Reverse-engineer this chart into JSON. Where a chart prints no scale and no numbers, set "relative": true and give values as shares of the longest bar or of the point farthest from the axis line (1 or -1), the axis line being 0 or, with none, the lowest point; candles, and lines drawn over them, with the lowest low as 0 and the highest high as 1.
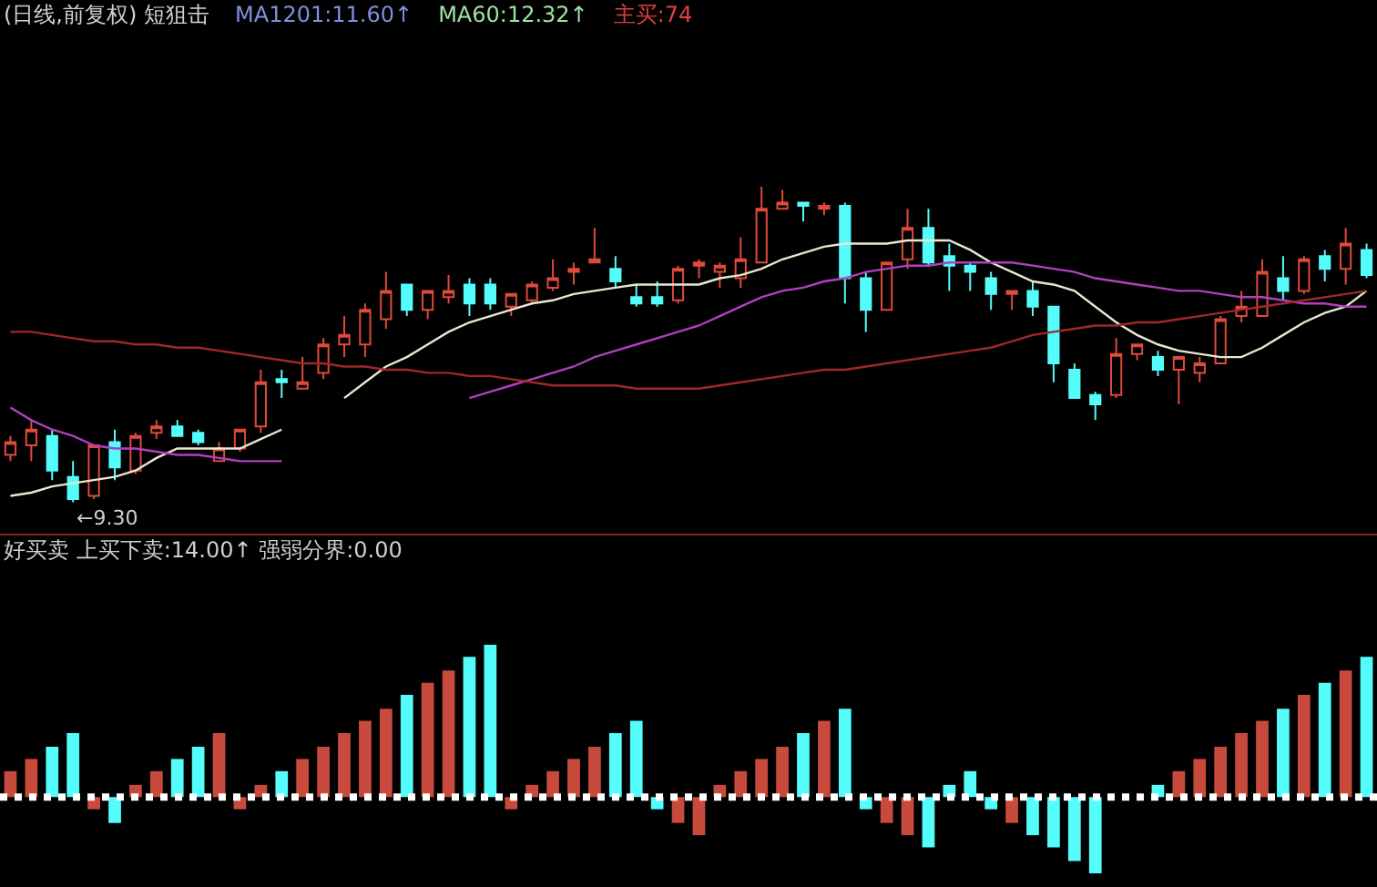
{
  "chart_data": [
    {
      "type": "candlestick",
      "title": "(日线,前复权) 短狙击",
      "relative": true,
      "categories": [
        null,
        null,
        null,
        null,
        null,
        null,
        null,
        null,
        null,
        null,
        null,
        null,
        null,
        null,
        null,
        null,
        null,
        null,
        null,
        null,
        null,
        null,
        null,
        null,
        null,
        null,
        null,
        null,
        null,
        null,
        null,
        null,
        null,
        null,
        null,
        null,
        null,
        null,
        null,
        null,
        null,
        null,
        null,
        null,
        null,
        null,
        null,
        null,
        null,
        null,
        null,
        null,
        null,
        null,
        null,
        null,
        null,
        null,
        null,
        null,
        null,
        null,
        null,
        null,
        null,
        null
      ],
      "ohlc": [
        [
          0.15,
          0.21,
          0.13,
          0.19
        ],
        [
          0.18,
          0.26,
          0.13,
          0.23
        ],
        [
          0.21,
          0.23,
          0.07,
          0.1
        ],
        [
          0.08,
          0.13,
          0,
          0.01
        ],
        [
          0.02,
          0.18,
          0.01,
          0.18
        ],
        [
          0.19,
          0.23,
          0.07,
          0.11
        ],
        [
          0.1,
          0.22,
          0.09,
          0.21
        ],
        [
          0.22,
          0.26,
          0.2,
          0.24
        ],
        [
          0.24,
          0.26,
          0.21,
          0.21
        ],
        [
          0.22,
          0.23,
          0.18,
          0.19
        ],
        [
          0.13,
          0.19,
          0.13,
          0.17
        ],
        [
          0.17,
          0.23,
          0.16,
          0.23
        ],
        [
          0.24,
          0.42,
          0.22,
          0.38
        ],
        [
          0.39,
          0.42,
          0.33,
          0.38
        ],
        [
          0.36,
          0.46,
          0.36,
          0.38
        ],
        [
          0.41,
          0.52,
          0.39,
          0.5
        ],
        [
          0.5,
          0.59,
          0.46,
          0.53
        ],
        [
          0.5,
          0.63,
          0.46,
          0.61
        ],
        [
          0.58,
          0.73,
          0.55,
          0.67
        ],
        [
          0.69,
          0.69,
          0.59,
          0.61
        ],
        [
          0.61,
          0.67,
          0.58,
          0.67
        ],
        [
          0.65,
          0.72,
          0.63,
          0.67
        ],
        [
          0.69,
          0.71,
          0.59,
          0.63
        ],
        [
          0.69,
          0.71,
          0.61,
          0.63
        ],
        [
          0.62,
          0.66,
          0.59,
          0.66
        ],
        [
          0.64,
          0.7,
          0.63,
          0.69
        ],
        [
          0.68,
          0.77,
          0.67,
          0.71
        ],
        [
          0.73,
          0.76,
          0.69,
          0.74
        ],
        [
          0.76,
          0.87,
          0.76,
          0.77
        ],
        [
          0.74,
          0.78,
          0.68,
          0.7
        ],
        [
          0.65,
          0.69,
          0.62,
          0.63
        ],
        [
          0.65,
          0.7,
          0.62,
          0.63
        ],
        [
          0.64,
          0.75,
          0.63,
          0.74
        ],
        [
          0.75,
          0.77,
          0.71,
          0.76
        ],
        [
          0.73,
          0.76,
          0.68,
          0.75
        ],
        [
          0.71,
          0.84,
          0.68,
          0.77
        ],
        [
          0.76,
          1,
          0.76,
          0.93
        ],
        [
          0.93,
          0.99,
          0.93,
          0.95
        ],
        [
          0.95,
          0.95,
          0.89,
          0.94
        ],
        [
          0.93,
          0.95,
          0.91,
          0.94
        ],
        [
          0.94,
          0.95,
          0.63,
          0.71
        ],
        [
          0.71,
          0.73,
          0.54,
          0.61
        ],
        [
          0.61,
          0.76,
          0.61,
          0.76
        ],
        [
          0.77,
          0.93,
          0.74,
          0.87
        ],
        [
          0.87,
          0.93,
          0.75,
          0.76
        ],
        [
          0.78,
          0.82,
          0.67,
          0.75
        ],
        [
          0.75,
          0.76,
          0.67,
          0.73
        ],
        [
          0.71,
          0.73,
          0.61,
          0.66
        ],
        [
          0.66,
          0.67,
          0.61,
          0.67
        ],
        [
          0.67,
          0.7,
          0.59,
          0.62
        ],
        [
          0.62,
          0.62,
          0.38,
          0.44
        ],
        [
          0.42,
          0.44,
          0.33,
          0.33
        ],
        [
          0.34,
          0.35,
          0.26,
          0.31
        ],
        [
          0.34,
          0.52,
          0.33,
          0.47
        ],
        [
          0.47,
          0.5,
          0.45,
          0.5
        ],
        [
          0.46,
          0.48,
          0.4,
          0.42
        ],
        [
          0.42,
          0.46,
          0.31,
          0.46
        ],
        [
          0.41,
          0.46,
          0.38,
          0.44
        ],
        [
          0.44,
          0.59,
          0.44,
          0.58
        ],
        [
          0.59,
          0.67,
          0.57,
          0.62
        ],
        [
          0.59,
          0.77,
          0.59,
          0.73
        ],
        [
          0.71,
          0.78,
          0.64,
          0.67
        ],
        [
          0.67,
          0.78,
          0.66,
          0.77
        ],
        [
          0.78,
          0.8,
          0.7,
          0.74
        ],
        [
          0.74,
          0.87,
          0.69,
          0.82
        ],
        [
          0.8,
          0.82,
          0.71,
          0.72
        ]
      ],
      "colors": [
        "#e04a3a",
        "#e04a3a",
        "#54fcfc",
        "#54fcfc",
        "#e04a3a",
        "#54fcfc",
        "#e04a3a",
        "#e04a3a",
        "#54fcfc",
        "#54fcfc",
        "#e04a3a",
        "#e04a3a",
        "#e04a3a",
        "#54fcfc",
        "#e04a3a",
        "#e04a3a",
        "#e04a3a",
        "#e04a3a",
        "#e04a3a",
        "#54fcfc",
        "#e04a3a",
        "#e04a3a",
        "#54fcfc",
        "#54fcfc",
        "#e04a3a",
        "#e04a3a",
        "#e04a3a",
        "#e04a3a",
        "#e04a3a",
        "#54fcfc",
        "#54fcfc",
        "#54fcfc",
        "#e04a3a",
        "#e04a3a",
        "#e04a3a",
        "#e04a3a",
        "#e04a3a",
        "#e04a3a",
        "#54fcfc",
        "#e04a3a",
        "#54fcfc",
        "#54fcfc",
        "#e04a3a",
        "#e04a3a",
        "#54fcfc",
        "#54fcfc",
        "#54fcfc",
        "#54fcfc",
        "#e04a3a",
        "#54fcfc",
        "#54fcfc",
        "#54fcfc",
        "#54fcfc",
        "#e04a3a",
        "#e04a3a",
        "#54fcfc",
        "#e04a3a",
        "#e04a3a",
        "#e04a3a",
        "#e04a3a",
        "#e04a3a",
        "#54fcfc",
        "#e04a3a",
        "#54fcfc",
        "#e04a3a",
        "#54fcfc"
      ],
      "series": [
        {
          "type": "line",
          "color": "#e8e8d0",
          "values": [
            0.02,
            0.03,
            0.05,
            0.06,
            0.07,
            0.08,
            0.1,
            0.14,
            0.17,
            0.17,
            0.17,
            0.17,
            0.2,
            0.23,
            null,
            null,
            0.33,
            0.38,
            0.43,
            0.46,
            0.5,
            0.54,
            0.57,
            0.59,
            0.61,
            0.63,
            0.64,
            0.66,
            0.67,
            0.68,
            0.69,
            0.69,
            0.69,
            0.69,
            0.71,
            0.72,
            0.74,
            0.77,
            0.79,
            0.81,
            0.82,
            0.82,
            0.82,
            0.83,
            0.83,
            0.83,
            0.8,
            0.76,
            0.73,
            0.7,
            0.69,
            0.67,
            0.62,
            0.57,
            0.53,
            0.5,
            0.48,
            0.47,
            0.46,
            0.46,
            0.49,
            0.53,
            0.57,
            0.6,
            0.62,
            0.67
          ]
        },
        {
          "type": "line",
          "color": "#b040c0",
          "values": [
            0.3,
            0.26,
            0.23,
            0.21,
            0.18,
            0.17,
            0.17,
            0.16,
            0.15,
            0.15,
            0.14,
            0.13,
            0.13,
            0.13,
            null,
            null,
            null,
            null,
            null,
            null,
            null,
            null,
            0.33,
            0.35,
            0.37,
            0.39,
            0.41,
            0.43,
            0.46,
            0.48,
            0.5,
            0.52,
            0.54,
            0.56,
            0.59,
            0.62,
            0.65,
            0.67,
            0.68,
            0.7,
            0.71,
            0.73,
            0.74,
            0.75,
            0.75,
            0.76,
            0.76,
            0.76,
            0.76,
            0.75,
            0.74,
            0.73,
            0.71,
            0.7,
            0.69,
            0.68,
            0.67,
            0.67,
            0.66,
            0.65,
            0.65,
            0.64,
            0.63,
            0.63,
            0.62,
            0.62
          ]
        },
        {
          "type": "line",
          "color": "#a02828",
          "values": [
            0.54,
            0.54,
            0.53,
            0.52,
            0.51,
            0.51,
            0.5,
            0.5,
            0.49,
            0.49,
            0.48,
            0.47,
            0.46,
            0.45,
            0.44,
            0.44,
            0.43,
            0.43,
            0.42,
            0.42,
            0.41,
            0.41,
            0.4,
            0.4,
            0.39,
            0.38,
            0.37,
            0.37,
            0.37,
            0.37,
            0.36,
            0.36,
            0.36,
            0.36,
            0.37,
            0.38,
            0.39,
            0.4,
            0.41,
            0.42,
            0.42,
            0.43,
            0.44,
            0.45,
            0.46,
            0.47,
            0.48,
            0.49,
            0.51,
            0.53,
            0.54,
            0.55,
            0.56,
            0.56,
            0.57,
            0.57,
            0.58,
            0.59,
            0.6,
            0.61,
            0.62,
            0.63,
            0.64,
            0.65,
            0.66,
            0.67
          ]
        }
      ],
      "annotations": [
        "MA1201:11.60↑",
        "MA60:12.32↑",
        "主买:74",
        "←9.30"
      ]
    },
    {
      "type": "bar",
      "title": "好买卖 上买下卖:14.00↑ 强弱分界:0.00",
      "relative": true,
      "ref_lines": [
        {
          "axis": "y",
          "value": 0,
          "color": "#ffffff",
          "line_style": "dotted"
        }
      ],
      "categories": [
        null,
        null,
        null,
        null,
        null,
        null,
        null,
        null,
        null,
        null,
        null,
        null,
        null,
        null,
        null,
        null,
        null,
        null,
        null,
        null,
        null,
        null,
        null,
        null,
        null,
        null,
        null,
        null,
        null,
        null,
        null,
        null,
        null,
        null,
        null,
        null,
        null,
        null,
        null,
        null,
        null,
        null,
        null,
        null,
        null,
        null,
        null,
        null,
        null,
        null,
        null,
        null,
        null,
        null,
        null,
        null,
        null,
        null,
        null,
        null,
        null,
        null,
        null,
        null,
        null,
        null
      ],
      "series": [
        {
          "type": "bar",
          "values": [
            0.17,
            0.25,
            0.33,
            0.42,
            -0.08,
            -0.17,
            0.08,
            0.17,
            0.25,
            0.33,
            0.42,
            -0.08,
            0.08,
            0.17,
            0.25,
            0.33,
            0.42,
            0.5,
            0.58,
            0.67,
            0.75,
            0.83,
            0.92,
            1,
            -0.08,
            0.08,
            0.17,
            0.25,
            0.33,
            0.42,
            0.5,
            -0.08,
            -0.17,
            -0.25,
            0.08,
            0.17,
            0.25,
            0.33,
            0.42,
            0.5,
            0.58,
            -0.08,
            -0.17,
            -0.25,
            -0.33,
            0.08,
            0.17,
            -0.08,
            -0.17,
            -0.25,
            -0.33,
            -0.42,
            -0.5,
            0,
            0,
            0.08,
            0.17,
            0.25,
            0.33,
            0.42,
            0.5,
            0.58,
            0.67,
            0.75,
            0.83,
            0.92
          ],
          "colors": [
            "#c84a3c",
            "#c84a3c",
            "#54fcfc",
            "#54fcfc",
            "#c84a3c",
            "#54fcfc",
            "#c84a3c",
            "#c84a3c",
            "#54fcfc",
            "#54fcfc",
            "#c84a3c",
            "#c84a3c",
            "#c84a3c",
            "#54fcfc",
            "#c84a3c",
            "#c84a3c",
            "#c84a3c",
            "#c84a3c",
            "#c84a3c",
            "#54fcfc",
            "#c84a3c",
            "#c84a3c",
            "#54fcfc",
            "#54fcfc",
            "#c84a3c",
            "#c84a3c",
            "#c84a3c",
            "#c84a3c",
            "#c84a3c",
            "#54fcfc",
            "#54fcfc",
            "#54fcfc",
            "#c84a3c",
            "#c84a3c",
            "#c84a3c",
            "#c84a3c",
            "#c84a3c",
            "#c84a3c",
            "#54fcfc",
            "#c84a3c",
            "#54fcfc",
            "#54fcfc",
            "#c84a3c",
            "#c84a3c",
            "#54fcfc",
            "#54fcfc",
            "#54fcfc",
            "#54fcfc",
            "#c84a3c",
            "#54fcfc",
            "#54fcfc",
            "#54fcfc",
            "#54fcfc",
            "#c84a3c",
            "#c84a3c",
            "#54fcfc",
            "#c84a3c",
            "#c84a3c",
            "#c84a3c",
            "#c84a3c",
            "#c84a3c",
            "#54fcfc",
            "#c84a3c",
            "#54fcfc",
            "#c84a3c",
            "#54fcfc"
          ]
        }
      ]
    }
  ]
}
